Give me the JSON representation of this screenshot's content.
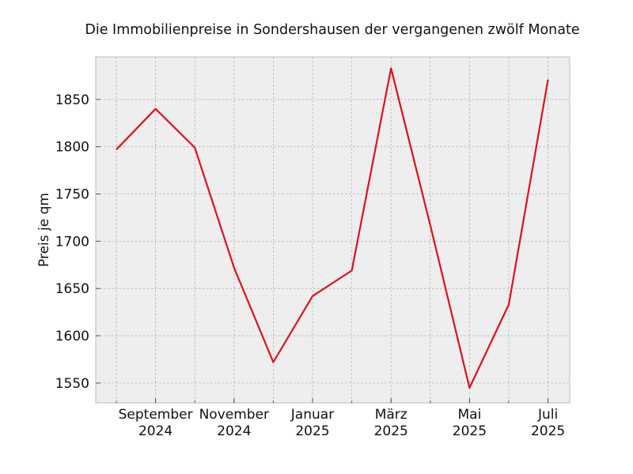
{
  "chart_data": {
    "type": "line",
    "title": "Die Immobilienpreise in Sondershausen der vergangenen zwölf Monate",
    "xlabel": "",
    "ylabel": "Preis je qm",
    "x": [
      "2024-08",
      "2024-09",
      "2024-10",
      "2024-11",
      "2024-12",
      "2025-01",
      "2025-02",
      "2025-03",
      "2025-04",
      "2025-05",
      "2025-06",
      "2025-07"
    ],
    "series": [
      {
        "color": "#e0101e",
        "values": [
          1797,
          1840,
          1799,
          1672,
          1572,
          1642,
          1669,
          1883,
          1717,
          1545,
          1633,
          1871
        ]
      }
    ],
    "x_ticks": [
      {
        "x": "2024-09",
        "line1": "September",
        "line2": "2024"
      },
      {
        "x": "2024-11",
        "line1": "November",
        "line2": "2024"
      },
      {
        "x": "2025-01",
        "line1": "Januar",
        "line2": "2025"
      },
      {
        "x": "2025-03",
        "line1": "März",
        "line2": "2025"
      },
      {
        "x": "2025-05",
        "line1": "Mai",
        "line2": "2025"
      },
      {
        "x": "2025-07",
        "line1": "Juli",
        "line2": "2025"
      }
    ],
    "y_ticks": [
      1550,
      1600,
      1650,
      1700,
      1750,
      1800,
      1850
    ],
    "ylim": [
      1529,
      1895
    ],
    "grid": true,
    "background": "#eeeeee"
  }
}
